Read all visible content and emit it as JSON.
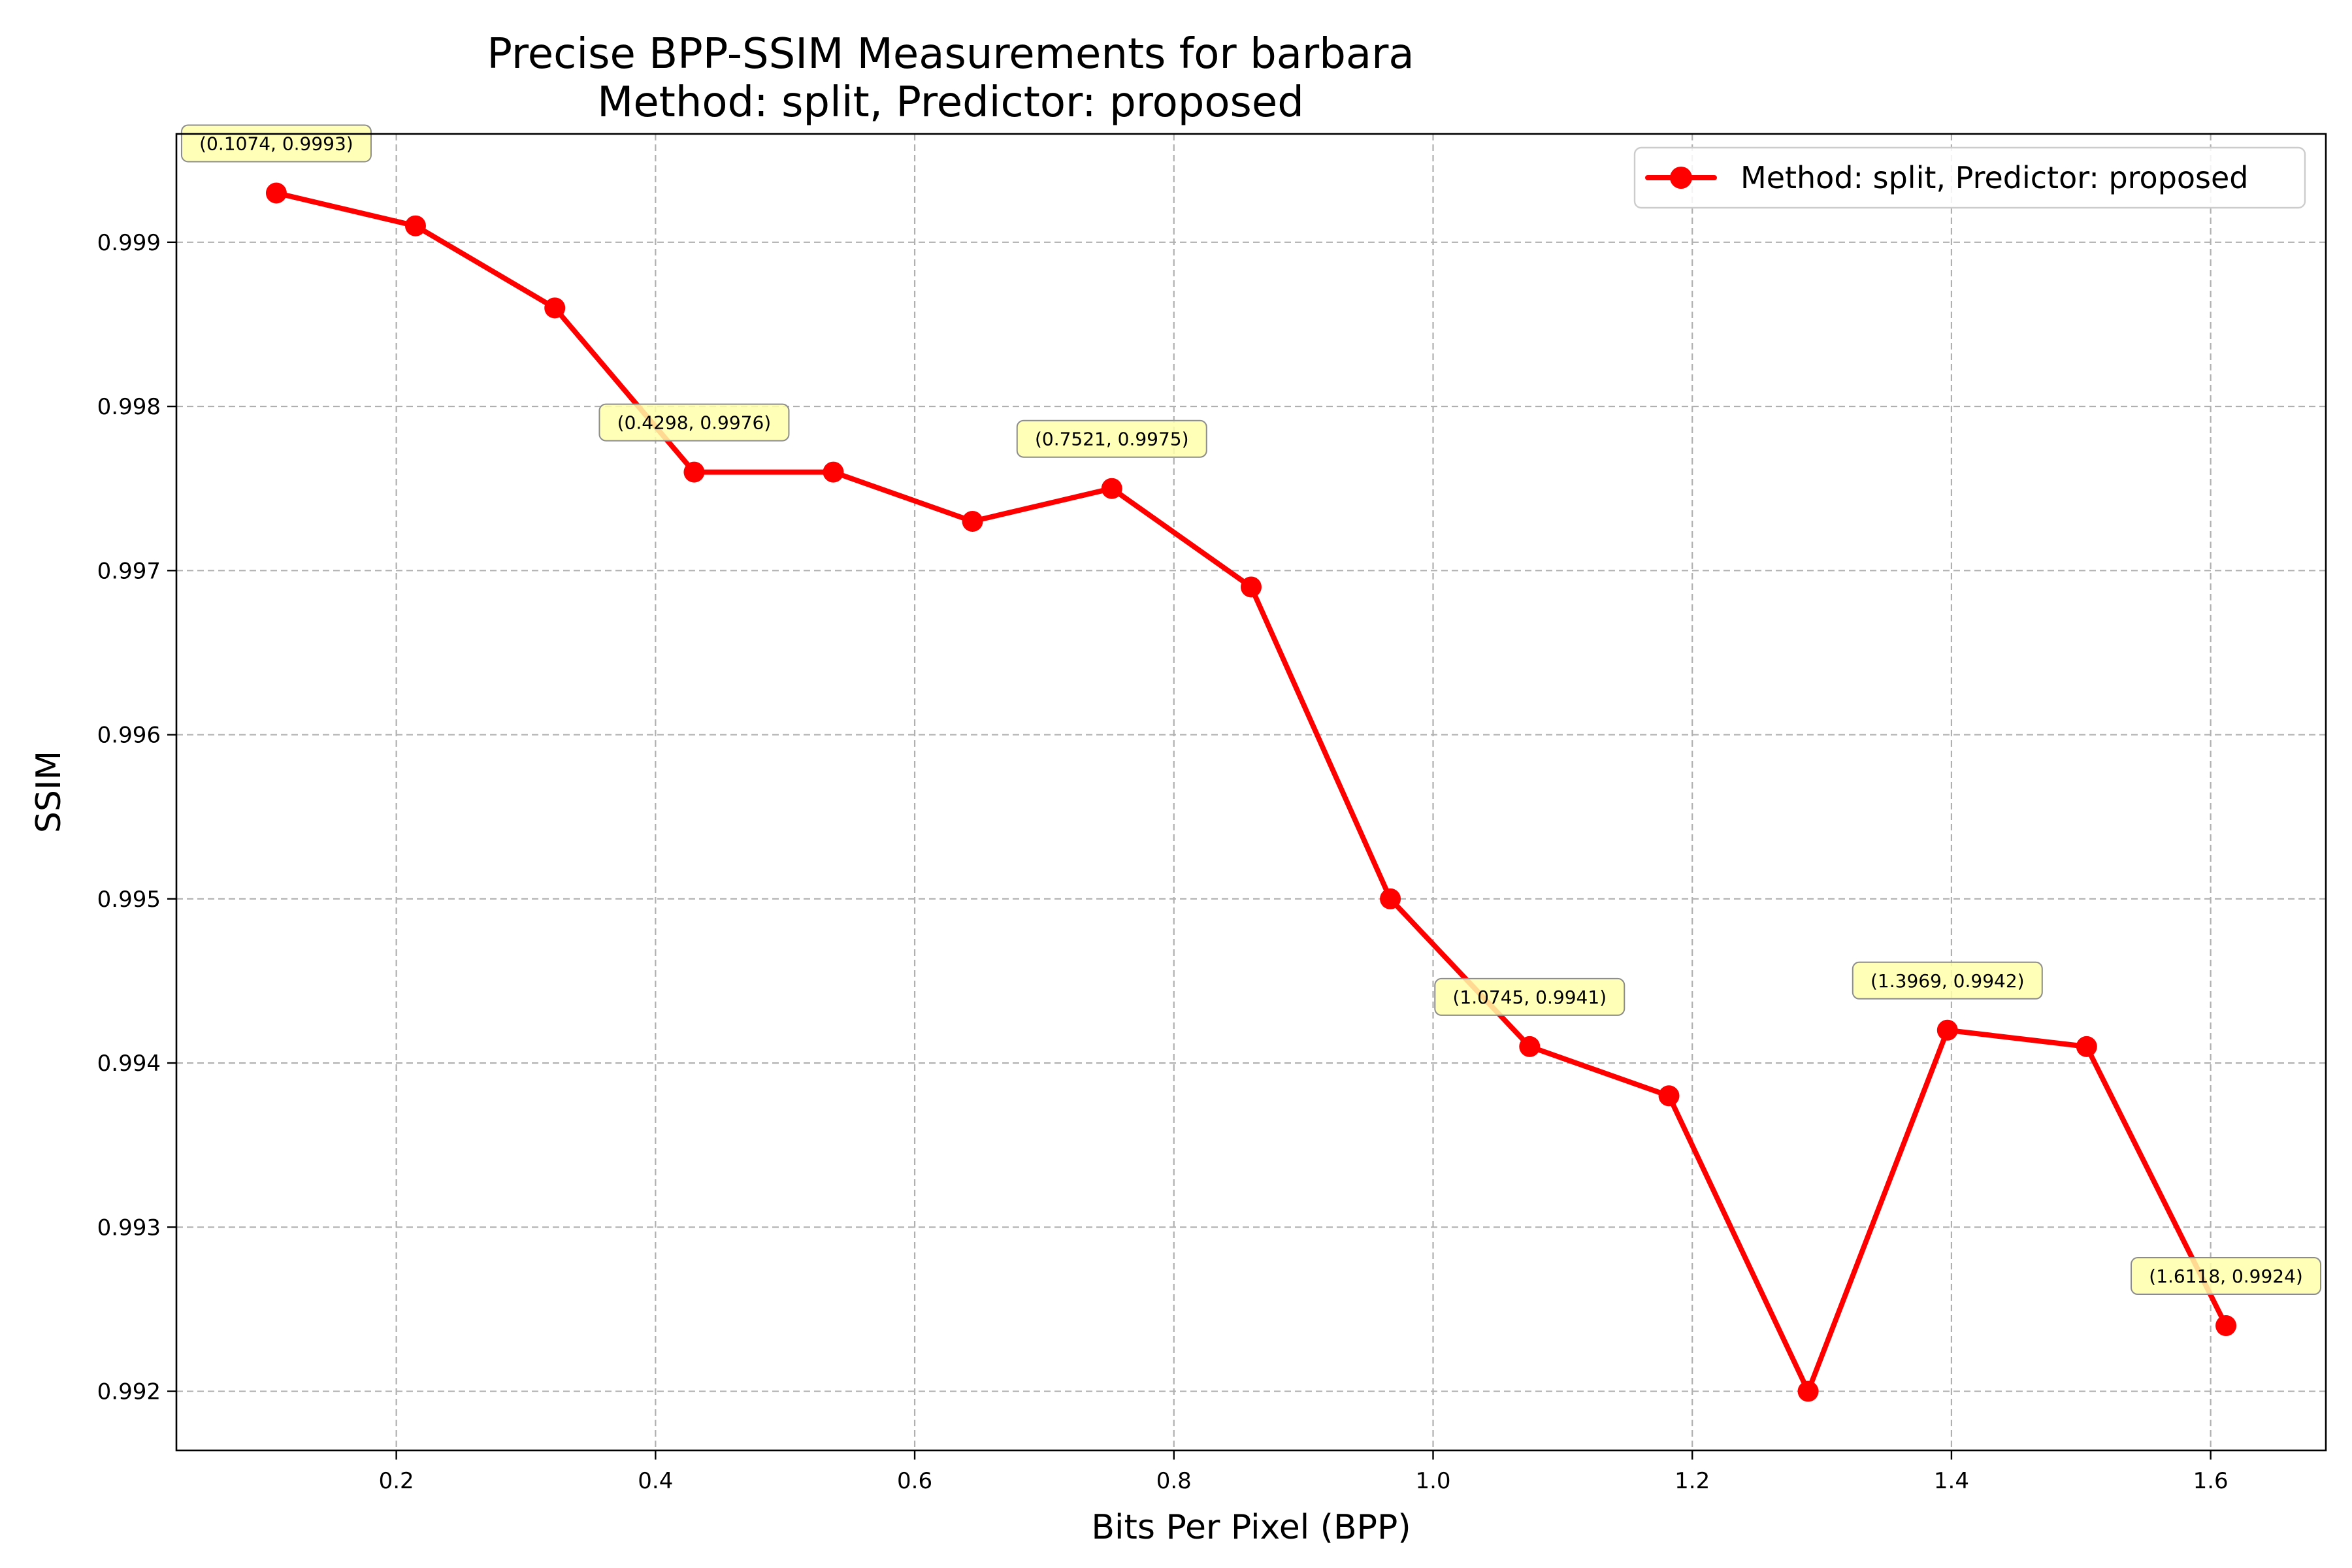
{
  "chart_data": {
    "type": "line",
    "title": "Precise BPP-SSIM Measurements for barbara",
    "subtitle": "Method: split, Predictor: proposed",
    "xlabel": "Bits Per Pixel (BPP)",
    "ylabel": "SSIM",
    "xlim": [
      0.0303,
      1.6889
    ],
    "ylim": [
      0.99164,
      0.99966
    ],
    "x_ticks": [
      0.2,
      0.4,
      0.6,
      0.8,
      1.0,
      1.2,
      1.4,
      1.6
    ],
    "x_tick_labels": [
      "0.2",
      "0.4",
      "0.6",
      "0.8",
      "1.0",
      "1.2",
      "1.4",
      "1.6"
    ],
    "y_ticks": [
      0.992,
      0.993,
      0.994,
      0.995,
      0.996,
      0.997,
      0.998,
      0.999
    ],
    "y_tick_labels": [
      "0.992",
      "0.993",
      "0.994",
      "0.995",
      "0.996",
      "0.997",
      "0.998",
      "0.999"
    ],
    "grid": true,
    "legend_position": "top-right",
    "series": [
      {
        "name": "Method: split, Predictor: proposed",
        "color": "#ff0000",
        "marker": "circle",
        "x": [
          0.1074,
          0.2148,
          0.3223,
          0.4298,
          0.5372,
          0.6446,
          0.7521,
          0.8596,
          0.967,
          1.0745,
          1.182,
          1.2894,
          1.3969,
          1.5043,
          1.6118
        ],
        "y": [
          0.9993,
          0.9991,
          0.9986,
          0.9976,
          0.9976,
          0.9973,
          0.9975,
          0.9969,
          0.995,
          0.9941,
          0.9938,
          0.992,
          0.9942,
          0.9941,
          0.9924
        ]
      }
    ],
    "annotations": [
      {
        "x": 0.1074,
        "y": 0.9993,
        "text": "(0.1074, 0.9993)"
      },
      {
        "x": 0.4298,
        "y": 0.9976,
        "text": "(0.4298, 0.9976)"
      },
      {
        "x": 0.7521,
        "y": 0.9975,
        "text": "(0.7521, 0.9975)"
      },
      {
        "x": 1.0745,
        "y": 0.9941,
        "text": "(1.0745, 0.9941)"
      },
      {
        "x": 1.3969,
        "y": 0.9942,
        "text": "(1.3969, 0.9942)"
      },
      {
        "x": 1.6118,
        "y": 0.9924,
        "text": "(1.6118, 0.9924)"
      }
    ],
    "annotation_color": "#ffffaa"
  }
}
